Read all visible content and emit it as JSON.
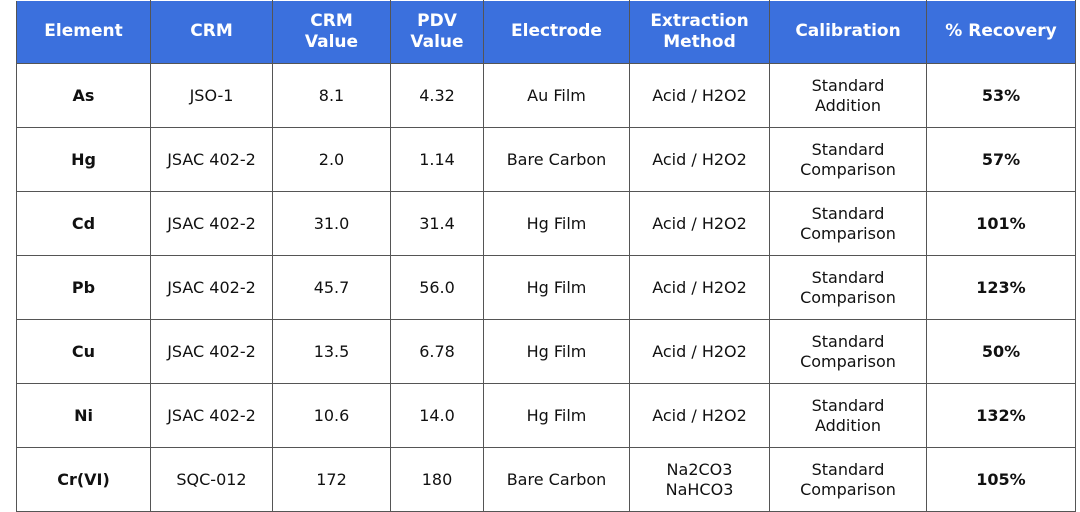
{
  "table": {
    "header": [
      "Element",
      "CRM",
      "CRM\nValue",
      "PDV\nValue",
      "Electrode",
      "Extraction\nMethod",
      "Calibration",
      "% Recovery"
    ],
    "rows": [
      [
        "As",
        "JSO-1",
        "8.1",
        "4.32",
        "Au Film",
        "Acid / H2O2",
        "Standard\nAddition",
        "53%"
      ],
      [
        "Hg",
        "JSAC  402-2",
        "2.0",
        "1.14",
        "Bare Carbon",
        "Acid / H2O2",
        "Standard\nComparison",
        "57%"
      ],
      [
        "Cd",
        "JSAC  402-2",
        "31.0",
        "31.4",
        "Hg Film",
        "Acid / H2O2",
        "Standard\nComparison",
        "101%"
      ],
      [
        "Pb",
        "JSAC  402-2",
        "45.7",
        "56.0",
        "Hg Film",
        "Acid / H2O2",
        "Standard\nComparison",
        "123%"
      ],
      [
        "Cu",
        "JSAC  402-2",
        "13.5",
        "6.78",
        "Hg Film",
        "Acid / H2O2",
        "Standard\nComparison",
        "50%"
      ],
      [
        "Ni",
        "JSAC  402-2",
        "10.6",
        "14.0",
        "Hg Film",
        "Acid / H2O2",
        "Standard\nAddition",
        "132%"
      ],
      [
        "Cr(VI)",
        "SQC-012",
        "172",
        "180",
        "Bare Carbon",
        "Na2CO3\nNaHCO3",
        "Standard\nComparison",
        "105%"
      ]
    ]
  }
}
